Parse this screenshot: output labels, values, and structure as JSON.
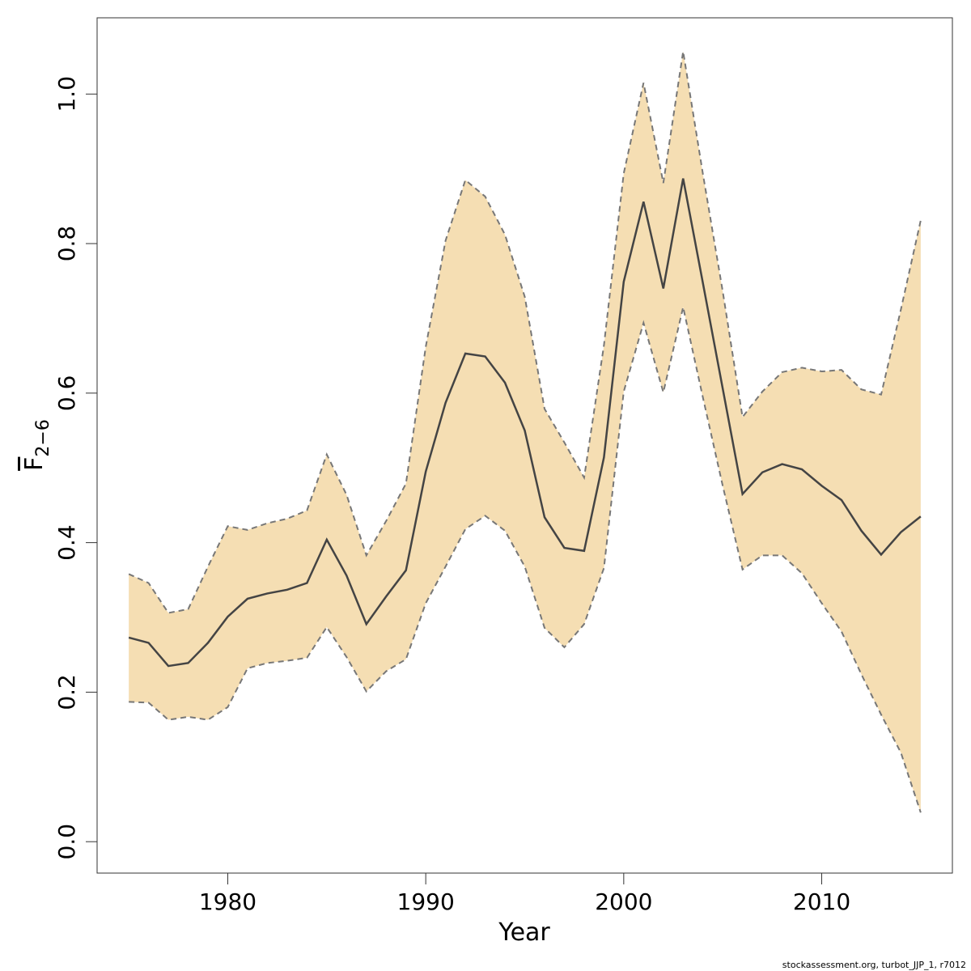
{
  "chart_data": {
    "type": "line",
    "x": [
      1975,
      1976,
      1977,
      1978,
      1979,
      1980,
      1981,
      1982,
      1983,
      1984,
      1985,
      1986,
      1987,
      1988,
      1989,
      1990,
      1991,
      1992,
      1993,
      1994,
      1995,
      1996,
      1997,
      1998,
      1999,
      2000,
      2001,
      2002,
      2003,
      2004,
      2005,
      2006,
      2007,
      2008,
      2009,
      2010,
      2011,
      2012,
      2013,
      2014,
      2015
    ],
    "values": [
      0.273,
      0.266,
      0.235,
      0.239,
      0.266,
      0.301,
      0.325,
      0.332,
      0.337,
      0.346,
      0.404,
      0.356,
      0.291,
      0.328,
      0.363,
      0.495,
      0.587,
      0.653,
      0.649,
      0.614,
      0.55,
      0.434,
      0.393,
      0.389,
      0.514,
      0.749,
      0.856,
      0.74,
      0.887,
      0.747,
      0.606,
      0.465,
      0.494,
      0.505,
      0.498,
      0.476,
      0.457,
      0.416,
      0.384,
      0.414,
      0.435
    ],
    "upper": [
      0.358,
      0.346,
      0.306,
      0.311,
      0.368,
      0.422,
      0.417,
      0.426,
      0.432,
      0.443,
      0.518,
      0.464,
      0.383,
      0.429,
      0.479,
      0.662,
      0.804,
      0.885,
      0.863,
      0.812,
      0.729,
      0.579,
      0.534,
      0.487,
      0.664,
      0.894,
      1.015,
      0.881,
      1.057,
      0.893,
      0.736,
      0.568,
      0.602,
      0.628,
      0.634,
      0.629,
      0.631,
      0.605,
      0.598,
      0.712,
      0.831
    ],
    "lower": [
      0.187,
      0.186,
      0.163,
      0.167,
      0.163,
      0.18,
      0.232,
      0.239,
      0.242,
      0.246,
      0.287,
      0.247,
      0.201,
      0.228,
      0.244,
      0.319,
      0.368,
      0.418,
      0.436,
      0.416,
      0.368,
      0.286,
      0.26,
      0.291,
      0.366,
      0.602,
      0.694,
      0.601,
      0.715,
      0.594,
      0.476,
      0.364,
      0.383,
      0.383,
      0.359,
      0.319,
      0.281,
      0.224,
      0.17,
      0.119,
      0.039
    ],
    "color": "#444444",
    "band_color": "#f5deb3",
    "band_edge_color": "#777777",
    "x_label": "Year",
    "y_label": "F",
    "y_label_sub": "2−6",
    "xlim": [
      1973.4,
      2016.6
    ],
    "ylim": [
      -0.042,
      1.102
    ],
    "xticks": [
      1980,
      1990,
      2000,
      2010
    ],
    "yticks": [
      {
        "value": 0,
        "label": "0.0"
      },
      0.2,
      0.4,
      0.6,
      0.8,
      {
        "value": 1,
        "label": "1.0"
      }
    ],
    "footer": "stockassessment.org, turbot_JJP_1, r7012"
  }
}
